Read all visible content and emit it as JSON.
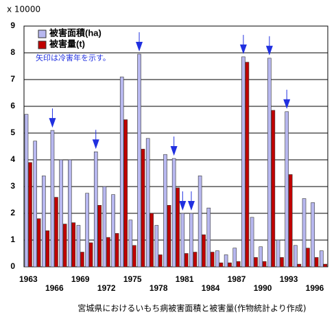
{
  "chart_data": {
    "type": "bar",
    "title": "宮城県におけるいもち病被害面積と被害量(作物統計より作成)",
    "y_unit": "x 10000",
    "annotation": "矢印は冷害年を示す。",
    "categories": [
      "1963",
      null,
      null,
      "1966",
      null,
      null,
      "1969",
      null,
      null,
      "1972",
      null,
      null,
      "1975",
      null,
      null,
      "1978",
      null,
      null,
      "1981",
      null,
      null,
      "1984",
      null,
      null,
      "1987",
      null,
      null,
      "1990",
      null,
      null,
      "1993",
      null,
      null,
      "1996",
      null
    ],
    "series": [
      {
        "name": "被害面積(ha)",
        "color": "#b8b8f0",
        "values": [
          5.7,
          4.7,
          3.4,
          5.1,
          4.0,
          4.0,
          1.55,
          2.75,
          4.3,
          3.0,
          2.7,
          7.1,
          1.75,
          7.95,
          4.8,
          1.55,
          4.2,
          4.05,
          2.0,
          2.0,
          3.4,
          2.2,
          0.6,
          0.45,
          0.7,
          7.85,
          1.85,
          0.75,
          7.8,
          1.0,
          5.8,
          0.8,
          2.55,
          2.4,
          0.6
        ]
      },
      {
        "name": "被害量(t)",
        "color": "#c00000",
        "values": [
          3.9,
          1.8,
          1.35,
          2.6,
          1.6,
          1.65,
          0.55,
          0.9,
          2.3,
          1.1,
          1.25,
          5.5,
          0.8,
          4.4,
          2.0,
          0.45,
          2.3,
          2.95,
          0.5,
          0.55,
          1.2,
          0.55,
          0.15,
          0.15,
          0.2,
          7.65,
          0.35,
          0.2,
          5.85,
          0.35,
          3.45,
          0.1,
          0.7,
          0.35,
          0.1
        ]
      }
    ],
    "arrows": [
      3,
      8,
      13,
      17,
      18,
      19,
      25,
      28,
      30
    ],
    "arrow_color": "#2030e0",
    "ylim": [
      0,
      9
    ],
    "yticks": [
      0,
      1,
      2,
      3,
      4,
      5,
      6,
      7,
      8,
      9
    ],
    "grid": true
  }
}
